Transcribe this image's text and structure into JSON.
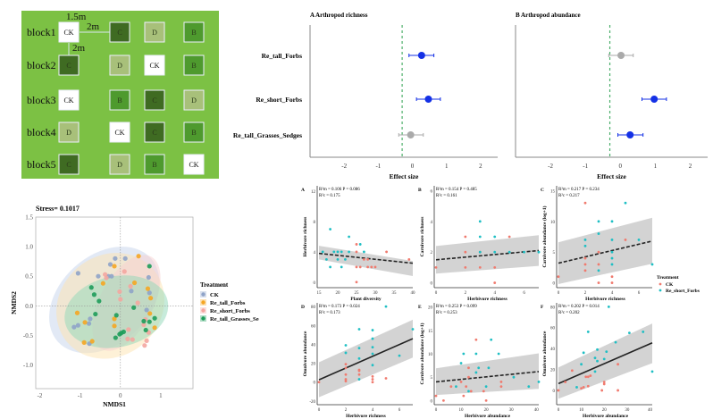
{
  "layout_panel": {
    "blocks": [
      "block1",
      "block2",
      "block3",
      "block4",
      "block5"
    ],
    "grid": [
      [
        "CK",
        "C",
        "D",
        "B"
      ],
      [
        "C",
        "D",
        "CK",
        "B"
      ],
      [
        "CK",
        "B",
        "C",
        "D"
      ],
      [
        "D",
        "CK",
        "C",
        "B"
      ],
      [
        "C",
        "D",
        "B",
        "CK"
      ]
    ],
    "dims": {
      "width": "1.5m",
      "gap_h": "2m",
      "gap_v": "2m"
    },
    "colors": {
      "background": "#7cc144",
      "B": "#4e9a2e",
      "C": "#3f6b22",
      "D": "#a8c07a",
      "CK": "#ffffff"
    }
  },
  "chart_data": [
    {
      "type": "scatter",
      "id": "nmds",
      "title": "Stress= 0.1017",
      "xlabel": "NMDS1",
      "ylabel": "NMDS2",
      "xlim": [
        -2.1,
        1.8
      ],
      "ylim": [
        -1.4,
        1.5
      ],
      "xticks": [
        -2,
        -1,
        0,
        1
      ],
      "yticks": [
        -1.0,
        -0.5,
        0.0,
        0.5,
        1.0,
        1.5
      ],
      "ytick_labels": [
        "-1.0",
        "-0.5",
        "0.0",
        "0.5",
        "1.0",
        "1.5"
      ],
      "legend_title": "Treatment",
      "legend_position": "right",
      "series": [
        {
          "name": "CK",
          "color": "#8fa3c8",
          "points": [
            [
              -1.05,
              0.55
            ],
            [
              -0.3,
              0.5
            ],
            [
              -0.25,
              0.7
            ],
            [
              -0.13,
              0.8
            ],
            [
              0.12,
              0.8
            ],
            [
              0.7,
              0.48
            ],
            [
              0.72,
              0.22
            ],
            [
              0.65,
              -0.07
            ],
            [
              0.27,
              0.25
            ],
            [
              -0.75,
              -0.22
            ],
            [
              -0.78,
              -0.3
            ],
            [
              -1.05,
              -0.33
            ],
            [
              -1.15,
              -0.36
            ],
            [
              -0.77,
              -0.64
            ],
            [
              -0.55,
              0.5
            ],
            [
              -0.22,
              0.5
            ]
          ]
        },
        {
          "name": "Re_tall_Forbs",
          "color": "#f5a623",
          "points": [
            [
              0.45,
              0.84
            ],
            [
              -0.15,
              0.67
            ],
            [
              -0.43,
              0.38
            ],
            [
              0.35,
              0.39
            ],
            [
              0.68,
              0.29
            ],
            [
              0.75,
              0.13
            ],
            [
              0.73,
              -0.13
            ],
            [
              0.85,
              -0.37
            ],
            [
              -1.07,
              -0.12
            ],
            [
              -0.88,
              -0.28
            ],
            [
              -0.15,
              -0.22
            ],
            [
              -0.15,
              -0.34
            ],
            [
              -0.9,
              -0.62
            ],
            [
              -0.7,
              -0.6
            ]
          ]
        },
        {
          "name": "Re_short_Forbs",
          "color": "#f4a6a0",
          "points": [
            [
              0.1,
              0.58
            ],
            [
              -0.38,
              0.53
            ],
            [
              -0.35,
              0.47
            ],
            [
              -0.02,
              0.24
            ],
            [
              0.0,
              0.11
            ],
            [
              0.25,
              0.33
            ],
            [
              0.43,
              0.05
            ],
            [
              0.62,
              -0.23
            ],
            [
              0.58,
              -0.32
            ],
            [
              0.7,
              -0.45
            ],
            [
              0.65,
              -0.59
            ],
            [
              0.6,
              -0.67
            ],
            [
              0.2,
              -0.4
            ],
            [
              0.18,
              -0.56
            ],
            [
              0.3,
              -0.57
            ]
          ]
        },
        {
          "name": "Re_tall_Grasses_Sedges",
          "color": "#1e9c5a",
          "points": [
            [
              0.72,
              0.67
            ],
            [
              -0.72,
              0.31
            ],
            [
              -0.65,
              0.19
            ],
            [
              -0.53,
              0.08
            ],
            [
              -0.62,
              -0.14
            ],
            [
              -0.1,
              -0.16
            ],
            [
              0.33,
              -0.03
            ],
            [
              0.85,
              -0.21
            ],
            [
              0.72,
              -0.27
            ],
            [
              0.58,
              -0.26
            ],
            [
              0.63,
              -0.41
            ],
            [
              0.08,
              -0.44
            ],
            [
              0.02,
              -0.46
            ],
            [
              -0.02,
              -0.48
            ],
            [
              -0.12,
              -0.54
            ]
          ]
        }
      ]
    },
    {
      "type": "forest",
      "id": "forestA",
      "title": "A  Arthropod richness",
      "xlabel": "Effect size",
      "xlim": [
        -3,
        2.5
      ],
      "xticks": [
        -2,
        -1,
        0,
        1,
        2
      ],
      "ref_line": -0.3,
      "rows": [
        {
          "label": "Re_tall_Forbs",
          "est": 0.27,
          "lo": -0.1,
          "hi": 0.63,
          "color": "#1431e6"
        },
        {
          "label": "Re_short_Forbs",
          "est": 0.47,
          "lo": 0.12,
          "hi": 0.82,
          "color": "#1431e6"
        },
        {
          "label": "Re_tall_Grasses_Sedges",
          "est": -0.05,
          "lo": -0.4,
          "hi": 0.32,
          "color": "#aaaaaa"
        }
      ]
    },
    {
      "type": "forest",
      "id": "forestB",
      "title": "B  Arthropod abundance",
      "xlabel": "Effect size",
      "xlim": [
        -3,
        2.5
      ],
      "xticks": [
        -2,
        -1,
        0,
        1,
        2
      ],
      "ref_line": -0.3,
      "rows": [
        {
          "label": "Re_tall_Forbs",
          "est": 0.02,
          "lo": -0.33,
          "hi": 0.37,
          "color": "#aaaaaa"
        },
        {
          "label": "Re_short_Forbs",
          "est": 0.97,
          "lo": 0.62,
          "hi": 1.32,
          "color": "#1431e6"
        },
        {
          "label": "Re_tall_Grasses_Sedges",
          "est": 0.28,
          "lo": -0.07,
          "hi": 0.65,
          "color": "#1431e6"
        }
      ]
    },
    {
      "type": "scatter",
      "id": "pA",
      "letter": "A",
      "xlabel": "Plant diversity",
      "ylabel": "Herbivore richness",
      "xlim": [
        15,
        40
      ],
      "ylim": [
        -0.5,
        12.5
      ],
      "xticks": [
        15,
        20,
        25,
        30,
        35,
        40
      ],
      "yticks": [
        0,
        4,
        8,
        12
      ],
      "stat1": "R²m = 0.106 P = 0.086",
      "stat2": "R²c = 0.175",
      "fit": [
        3.8,
        2.5
      ],
      "band": [
        [
          4.8,
          2.8
        ],
        [
          3.0,
          0.8
        ]
      ],
      "dashed": true,
      "ck": [
        [
          25,
          5
        ],
        [
          25,
          4
        ],
        [
          25,
          2
        ],
        [
          26,
          2
        ],
        [
          27,
          3
        ],
        [
          28,
          3
        ],
        [
          28,
          2
        ],
        [
          29,
          2
        ],
        [
          30,
          2
        ],
        [
          33,
          4
        ],
        [
          39,
          3
        ],
        [
          25,
          0
        ]
      ],
      "rs": [
        [
          16,
          4
        ],
        [
          17,
          3
        ],
        [
          18,
          7
        ],
        [
          18,
          2
        ],
        [
          19,
          4
        ],
        [
          20,
          4
        ],
        [
          20,
          3
        ],
        [
          21,
          4
        ],
        [
          21,
          2
        ],
        [
          22,
          3
        ],
        [
          23,
          6
        ],
        [
          23,
          4
        ],
        [
          26,
          5
        ],
        [
          27,
          4
        ]
      ]
    },
    {
      "type": "scatter",
      "id": "pB",
      "letter": "B",
      "xlabel": "Herbivore richness",
      "ylabel": "Carnivore richness",
      "xlim": [
        0,
        7
      ],
      "ylim": [
        -0.2,
        6.2
      ],
      "xticks": [
        0,
        2,
        4,
        6
      ],
      "yticks": [
        0,
        2,
        4,
        6
      ],
      "stat1": "R²m = 0.154  P = 0.485",
      "stat2": "R²c = 0.161",
      "fit": [
        1.5,
        2.1
      ],
      "band": [
        [
          2.4,
          3.1
        ],
        [
          0.6,
          1.1
        ]
      ],
      "dashed": true,
      "ck": [
        [
          0,
          1
        ],
        [
          2,
          3
        ],
        [
          2,
          2
        ],
        [
          2,
          1
        ],
        [
          3,
          1
        ],
        [
          4,
          1
        ],
        [
          4,
          0
        ],
        [
          5,
          3
        ],
        [
          3,
          2
        ]
      ],
      "rs": [
        [
          3,
          4
        ],
        [
          3,
          3
        ],
        [
          4,
          3
        ],
        [
          4,
          2
        ],
        [
          5,
          2
        ],
        [
          6,
          2
        ],
        [
          7,
          2
        ],
        [
          3,
          2
        ]
      ]
    },
    {
      "type": "scatter",
      "id": "pC",
      "letter": "C",
      "xlabel": "Herbivore richness",
      "ylabel": "Carnivore abundance (log+1)",
      "xlim": [
        0,
        7
      ],
      "ylim": [
        -0.5,
        15.5
      ],
      "xticks": [
        0,
        2,
        4,
        6
      ],
      "yticks": [
        0,
        5,
        10,
        15
      ],
      "stat1": "R²m = 0.217 P = 0.234",
      "stat2": "R²c = 0.217",
      "fit": [
        3.2,
        6.8
      ],
      "band": [
        [
          6.6,
          10.6
        ],
        [
          -0.2,
          3.1
        ]
      ],
      "dashed": true,
      "ck": [
        [
          0,
          1
        ],
        [
          2,
          13
        ],
        [
          2,
          4
        ],
        [
          2,
          3
        ],
        [
          2,
          2
        ],
        [
          3,
          5
        ],
        [
          3,
          3
        ],
        [
          3,
          0
        ],
        [
          4,
          1
        ],
        [
          4,
          0
        ],
        [
          5,
          7
        ]
      ],
      "rs": [
        [
          2,
          7
        ],
        [
          2,
          6
        ],
        [
          3,
          10
        ],
        [
          3,
          8
        ],
        [
          3,
          2
        ],
        [
          4,
          10
        ],
        [
          4,
          7
        ],
        [
          4,
          5
        ],
        [
          4,
          4
        ],
        [
          4,
          3
        ],
        [
          5,
          13
        ],
        [
          6,
          7
        ],
        [
          7,
          3
        ]
      ]
    },
    {
      "type": "scatter",
      "id": "pD",
      "letter": "D",
      "xlabel": "Herbivore richness",
      "ylabel": "Omnivore abundance",
      "xlim": [
        0,
        7
      ],
      "ylim": [
        -22,
        82
      ],
      "xticks": [
        0,
        2,
        4,
        6
      ],
      "yticks": [
        -20,
        0,
        20,
        40,
        60,
        80
      ],
      "stat1": "R²m = 0.173 P = 0.024",
      "stat2": "R²c = 0.173",
      "fit": [
        2.5,
        46
      ],
      "band": [
        [
          21,
          66
        ],
        [
          -16,
          26
        ]
      ],
      "dashed": false,
      "ck": [
        [
          0,
          0
        ],
        [
          2,
          19
        ],
        [
          2,
          15
        ],
        [
          2,
          8
        ],
        [
          2,
          3
        ],
        [
          2,
          1
        ],
        [
          3,
          13
        ],
        [
          3,
          8
        ],
        [
          4,
          6
        ],
        [
          4,
          3
        ],
        [
          4,
          0
        ],
        [
          5,
          4
        ],
        [
          3,
          12
        ]
      ],
      "rs": [
        [
          2,
          39
        ],
        [
          2,
          31
        ],
        [
          3,
          56
        ],
        [
          3,
          36
        ],
        [
          3,
          25
        ],
        [
          3,
          3
        ],
        [
          4,
          55
        ],
        [
          4,
          46
        ],
        [
          4,
          37
        ],
        [
          4,
          30
        ],
        [
          4,
          18
        ],
        [
          5,
          80
        ],
        [
          6,
          28
        ],
        [
          7,
          56
        ]
      ]
    },
    {
      "type": "scatter",
      "id": "pE",
      "letter": "E",
      "xlabel": "Herbivore abundance",
      "ylabel": "Carnivore abundance (log+1)",
      "xlim": [
        0,
        41
      ],
      "ylim": [
        -0.5,
        20.5
      ],
      "xticks": [
        0,
        10,
        20,
        30,
        40
      ],
      "yticks": [
        0,
        5,
        10,
        15,
        20
      ],
      "stat1": "R²m = 0.253 P = 0.099",
      "stat2": "R²c = 0.253",
      "fit": [
        4.0,
        6.2
      ],
      "band": [
        [
          6.9,
          10.1
        ],
        [
          1.2,
          2.5
        ]
      ],
      "dashed": true,
      "ck": [
        [
          0,
          1
        ],
        [
          3,
          0
        ],
        [
          6,
          3
        ],
        [
          10,
          4
        ],
        [
          11,
          1
        ],
        [
          12,
          3
        ],
        [
          13,
          7
        ],
        [
          13,
          5
        ],
        [
          14,
          2
        ],
        [
          16,
          13
        ],
        [
          19,
          2
        ],
        [
          20,
          0
        ],
        [
          26,
          4
        ],
        [
          26,
          3
        ]
      ],
      "rs": [
        [
          8,
          3
        ],
        [
          10,
          8
        ],
        [
          11,
          10
        ],
        [
          13,
          2
        ],
        [
          16,
          10
        ],
        [
          16,
          6
        ],
        [
          17,
          7
        ],
        [
          20,
          3
        ],
        [
          21,
          7
        ],
        [
          22,
          13
        ],
        [
          25,
          10
        ],
        [
          31,
          5
        ],
        [
          37,
          3
        ],
        [
          41,
          4
        ]
      ]
    },
    {
      "type": "scatter",
      "id": "pF",
      "letter": "F",
      "xlabel": "Herbivore abundance",
      "ylabel": "Omnivore abundance",
      "xlim": [
        0,
        41
      ],
      "ylim": [
        -12,
        82
      ],
      "xticks": [
        0,
        10,
        20,
        30,
        40
      ],
      "yticks": [
        0,
        20,
        40,
        60,
        80
      ],
      "stat1": "R²m = 0.202 P = 0.014",
      "stat2": "R²c = 0.202",
      "fit": [
        6.5,
        45.5
      ],
      "band": [
        [
          22,
          64
        ],
        [
          -8,
          26
        ]
      ],
      "dashed": false,
      "ck": [
        [
          0,
          0
        ],
        [
          3,
          8
        ],
        [
          6,
          19
        ],
        [
          10,
          2
        ],
        [
          11,
          3
        ],
        [
          12,
          13
        ],
        [
          13,
          13
        ],
        [
          13,
          4
        ],
        [
          14,
          14
        ],
        [
          19,
          0
        ],
        [
          20,
          8
        ],
        [
          20,
          6
        ],
        [
          26,
          25
        ],
        [
          26,
          0
        ]
      ],
      "rs": [
        [
          8,
          3
        ],
        [
          10,
          25
        ],
        [
          11,
          36
        ],
        [
          13,
          56
        ],
        [
          16,
          31
        ],
        [
          16,
          18
        ],
        [
          17,
          39
        ],
        [
          17,
          28
        ],
        [
          20,
          30
        ],
        [
          21,
          37
        ],
        [
          22,
          80
        ],
        [
          25,
          46
        ],
        [
          31,
          55
        ],
        [
          37,
          56
        ],
        [
          41,
          18
        ]
      ]
    }
  ],
  "scatter_legend": {
    "title": "Treatment",
    "items": [
      {
        "name": "CK",
        "color": "#f07a6e"
      },
      {
        "name": "Re_short_Forbs",
        "color": "#1fbfc4"
      }
    ]
  }
}
